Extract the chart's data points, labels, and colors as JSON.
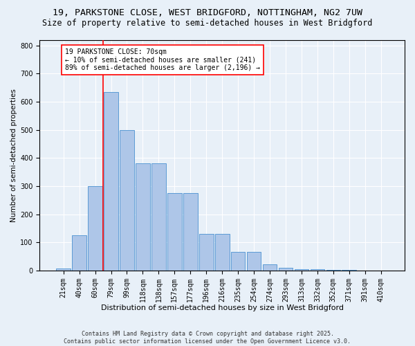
{
  "title1": "19, PARKSTONE CLOSE, WEST BRIDGFORD, NOTTINGHAM, NG2 7UW",
  "title2": "Size of property relative to semi-detached houses in West Bridgford",
  "xlabel": "Distribution of semi-detached houses by size in West Bridgford",
  "ylabel": "Number of semi-detached properties",
  "categories": [
    "21sqm",
    "40sqm",
    "60sqm",
    "79sqm",
    "99sqm",
    "118sqm",
    "138sqm",
    "157sqm",
    "177sqm",
    "196sqm",
    "216sqm",
    "235sqm",
    "254sqm",
    "274sqm",
    "293sqm",
    "313sqm",
    "332sqm",
    "352sqm",
    "371sqm",
    "391sqm",
    "410sqm"
  ],
  "values": [
    8,
    125,
    300,
    635,
    500,
    380,
    380,
    275,
    275,
    130,
    130,
    65,
    65,
    22,
    10,
    5,
    5,
    2,
    2,
    0,
    0
  ],
  "bar_color": "#aec6e8",
  "bar_edge_color": "#5b9bd5",
  "vline_x": 2.5,
  "vline_color": "red",
  "annotation_text": "19 PARKSTONE CLOSE: 70sqm\n← 10% of semi-detached houses are smaller (241)\n89% of semi-detached houses are larger (2,196) →",
  "annotation_box_color": "white",
  "annotation_box_edge_color": "red",
  "ylim": [
    0,
    820
  ],
  "yticks": [
    0,
    100,
    200,
    300,
    400,
    500,
    600,
    700,
    800
  ],
  "bg_color": "#e8f0f8",
  "plot_bg_color": "#e8f0f8",
  "footer": "Contains HM Land Registry data © Crown copyright and database right 2025.\nContains public sector information licensed under the Open Government Licence v3.0.",
  "title1_fontsize": 9.5,
  "title2_fontsize": 8.5,
  "xlabel_fontsize": 8,
  "ylabel_fontsize": 7.5,
  "tick_fontsize": 7,
  "footer_fontsize": 6,
  "annotation_fontsize": 7
}
